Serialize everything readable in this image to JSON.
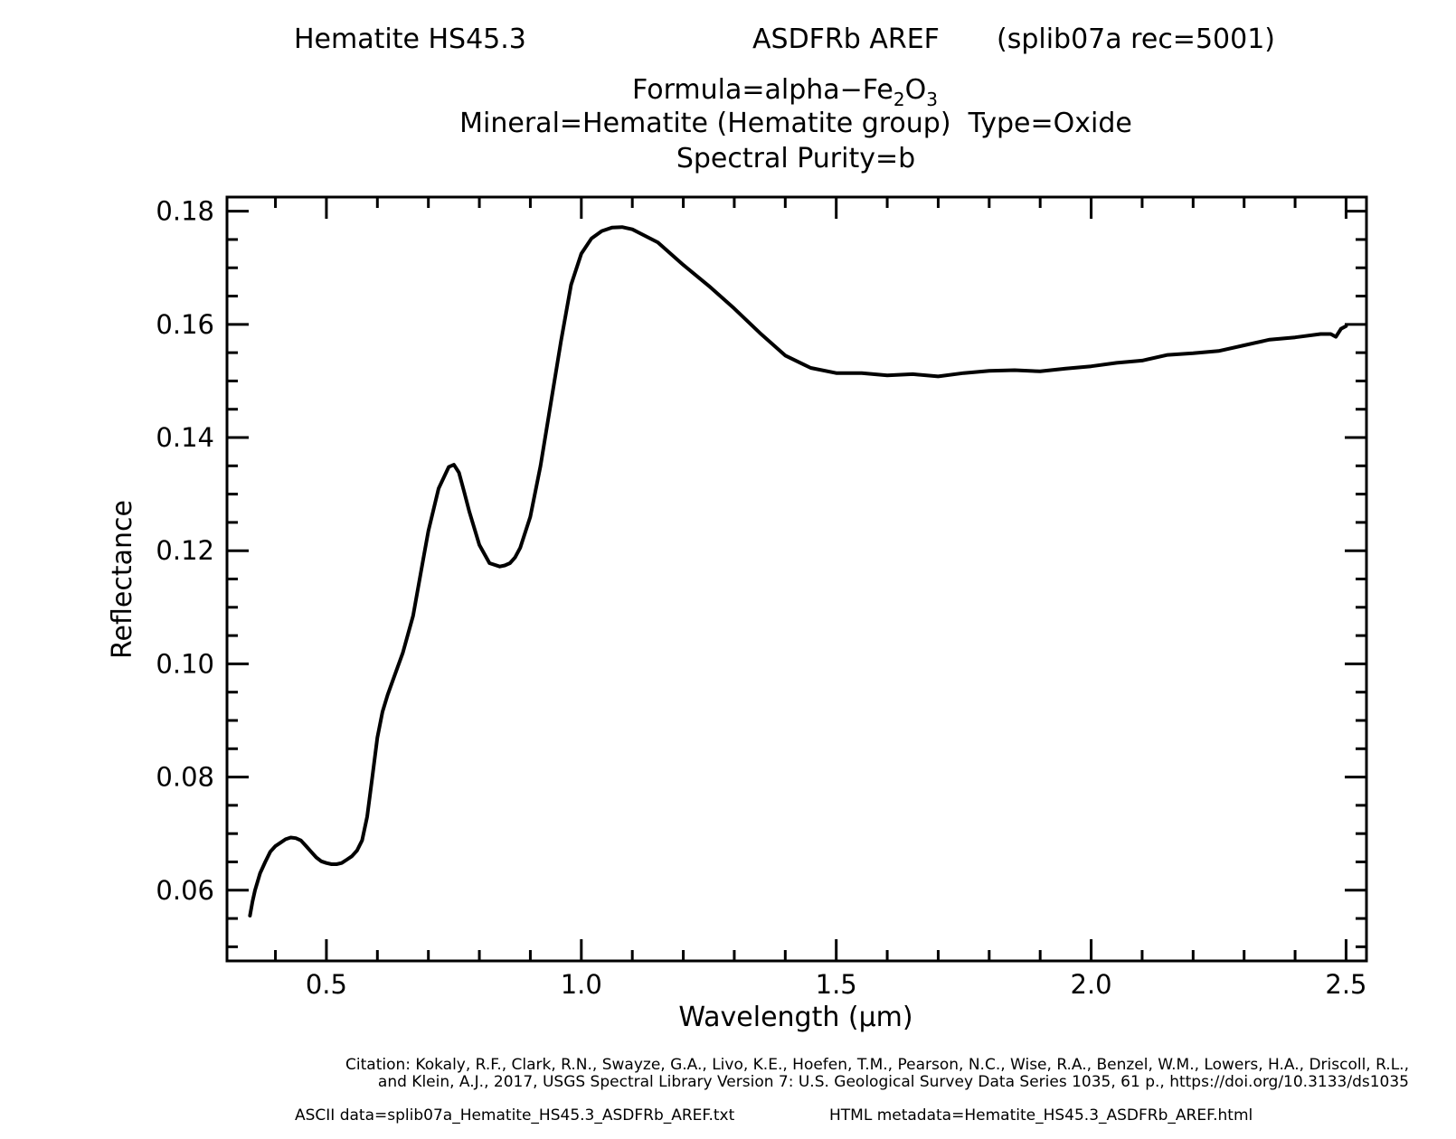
{
  "header": {
    "sample_name": "Hematite HS45.3",
    "spectrometer": "ASDFRb AREF",
    "record": "(splib07a rec=5001)",
    "formula_prefix": "Formula=alpha−Fe",
    "formula_sub1": "2",
    "formula_mid": "O",
    "formula_sub2": "3",
    "mineral": "Mineral=Hematite (Hematite group)  Type=Oxide",
    "purity": "Spectral Purity=b"
  },
  "footer": {
    "citation_line1": "Citation: Kokaly, R.F., Clark, R.N., Swayze, G.A., Livo, K.E., Hoefen, T.M., Pearson, N.C., Wise, R.A., Benzel, W.M., Lowers, H.A., Driscoll, R.L.,",
    "citation_line2": "and Klein, A.J., 2017, USGS Spectral Library Version 7: U.S. Geological Survey Data Series 1035, 61 p., https://doi.org/10.3133/ds1035",
    "ascii_data": "ASCII data=splib07a_Hematite_HS45.3_ASDFRb_AREF.txt",
    "html_metadata": "HTML metadata=Hematite_HS45.3_ASDFRb_AREF.html"
  },
  "chart_data": {
    "type": "line",
    "xlabel": "Wavelength (μm)",
    "ylabel": "Reflectance",
    "xlim": [
      0.305,
      2.54
    ],
    "ylim": [
      0.0475,
      0.1825
    ],
    "xticks": [
      0.5,
      1.0,
      1.5,
      2.0,
      2.5
    ],
    "xtick_labels": [
      "0.5",
      "1.0",
      "1.5",
      "2.0",
      "2.5"
    ],
    "yticks": [
      0.06,
      0.08,
      0.1,
      0.12,
      0.14,
      0.16,
      0.18
    ],
    "ytick_labels": [
      "0.06",
      "0.08",
      "0.10",
      "0.12",
      "0.14",
      "0.16",
      "0.18"
    ],
    "grid": false,
    "line_color": "#000000",
    "series": [
      {
        "x": [
          0.35,
          0.355,
          0.36,
          0.37,
          0.38,
          0.39,
          0.4,
          0.41,
          0.42,
          0.43,
          0.44,
          0.45,
          0.46,
          0.47,
          0.48,
          0.49,
          0.5,
          0.51,
          0.52,
          0.53,
          0.54,
          0.55,
          0.56,
          0.57,
          0.58,
          0.59,
          0.6,
          0.61,
          0.62,
          0.63,
          0.65,
          0.67,
          0.69,
          0.7,
          0.72,
          0.74,
          0.75,
          0.76,
          0.77,
          0.78,
          0.8,
          0.82,
          0.84,
          0.85,
          0.86,
          0.87,
          0.88,
          0.9,
          0.92,
          0.94,
          0.96,
          0.98,
          1.0,
          1.02,
          1.04,
          1.06,
          1.08,
          1.1,
          1.15,
          1.2,
          1.25,
          1.3,
          1.35,
          1.4,
          1.45,
          1.5,
          1.55,
          1.6,
          1.65,
          1.7,
          1.75,
          1.8,
          1.85,
          1.9,
          1.95,
          2.0,
          2.05,
          2.1,
          2.15,
          2.2,
          2.25,
          2.3,
          2.35,
          2.4,
          2.45,
          2.47,
          2.48,
          2.49,
          2.5
        ],
        "y": [
          0.0555,
          0.058,
          0.06,
          0.063,
          0.065,
          0.0668,
          0.0678,
          0.0684,
          0.069,
          0.0693,
          0.0692,
          0.0688,
          0.0678,
          0.0668,
          0.0658,
          0.0651,
          0.0648,
          0.0646,
          0.0646,
          0.0648,
          0.0654,
          0.066,
          0.067,
          0.0688,
          0.073,
          0.08,
          0.087,
          0.0915,
          0.0945,
          0.097,
          0.102,
          0.1085,
          0.1185,
          0.1235,
          0.131,
          0.1348,
          0.1352,
          0.1338,
          0.1305,
          0.127,
          0.121,
          0.1178,
          0.1172,
          0.1174,
          0.1178,
          0.1188,
          0.1205,
          0.126,
          0.135,
          0.146,
          0.157,
          0.167,
          0.1725,
          0.1752,
          0.1765,
          0.1771,
          0.1772,
          0.1768,
          0.1745,
          0.1705,
          0.1668,
          0.1628,
          0.1585,
          0.1545,
          0.1523,
          0.1514,
          0.1514,
          0.151,
          0.1512,
          0.1508,
          0.1514,
          0.1518,
          0.1519,
          0.1517,
          0.1522,
          0.1526,
          0.1532,
          0.1536,
          0.1546,
          0.1549,
          0.1553,
          0.1563,
          0.1573,
          0.1577,
          0.1583,
          0.1583,
          0.1578,
          0.1592,
          0.1597
        ]
      }
    ]
  }
}
